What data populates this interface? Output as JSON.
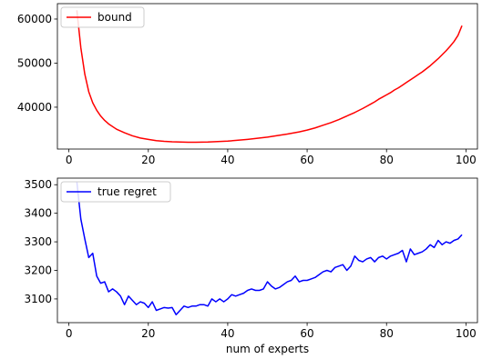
{
  "chart_data": [
    {
      "type": "line",
      "title": "",
      "xlabel": "",
      "ylabel": "",
      "xlim": [
        -2.9,
        102.9
      ],
      "ylim": [
        30500,
        63500
      ],
      "xticks": [
        0,
        20,
        40,
        60,
        80,
        100
      ],
      "yticks": [
        40000,
        50000,
        60000
      ],
      "xtick_labels": [
        "0",
        "20",
        "40",
        "60",
        "80",
        "100"
      ],
      "ytick_labels": [
        "40000",
        "50000",
        "60000"
      ],
      "grid": false,
      "legend_position": "upper left",
      "series": [
        {
          "name": "bound",
          "color": "#ff0000",
          "x": [
            2,
            3,
            4,
            5,
            6,
            7,
            8,
            9,
            10,
            12,
            14,
            16,
            18,
            20,
            22,
            24,
            26,
            28,
            30,
            32,
            35,
            40,
            45,
            50,
            55,
            58,
            60,
            62,
            64,
            66,
            68,
            70,
            72,
            74,
            75,
            76,
            77,
            78,
            79,
            80,
            81,
            82,
            83,
            84,
            85,
            86,
            87,
            88,
            89,
            90,
            91,
            92,
            93,
            94,
            95,
            96,
            97,
            98,
            99
          ],
          "y": [
            62000,
            53500,
            47500,
            43500,
            41000,
            39300,
            38000,
            37000,
            36200,
            35000,
            34200,
            33500,
            33000,
            32700,
            32400,
            32250,
            32150,
            32100,
            32050,
            32050,
            32100,
            32300,
            32700,
            33200,
            33900,
            34400,
            34800,
            35300,
            35900,
            36500,
            37200,
            38000,
            38800,
            39700,
            40200,
            40700,
            41200,
            41800,
            42300,
            42800,
            43300,
            43900,
            44400,
            45000,
            45600,
            46200,
            46800,
            47400,
            48000,
            48700,
            49400,
            50200,
            51000,
            51900,
            52800,
            53800,
            54900,
            56300,
            58500
          ]
        }
      ]
    },
    {
      "type": "line",
      "title": "",
      "xlabel": "num of experts",
      "ylabel": "",
      "xlim": [
        -2.9,
        102.9
      ],
      "ylim": [
        3017,
        3523
      ],
      "xticks": [
        0,
        20,
        40,
        60,
        80,
        100
      ],
      "yticks": [
        3100,
        3200,
        3300,
        3400,
        3500
      ],
      "xtick_labels": [
        "0",
        "20",
        "40",
        "60",
        "80",
        "100"
      ],
      "ytick_labels": [
        "3100",
        "3200",
        "3300",
        "3400",
        "3500"
      ],
      "grid": false,
      "legend_position": "upper left",
      "series": [
        {
          "name": "true regret",
          "color": "#0000ff",
          "x": [
            2,
            3,
            4,
            5,
            6,
            7,
            8,
            9,
            10,
            11,
            12,
            13,
            14,
            15,
            16,
            17,
            18,
            19,
            20,
            21,
            22,
            23,
            24,
            25,
            26,
            27,
            28,
            29,
            30,
            31,
            32,
            33,
            34,
            35,
            36,
            37,
            38,
            39,
            40,
            41,
            42,
            43,
            44,
            45,
            46,
            47,
            48,
            49,
            50,
            51,
            52,
            53,
            54,
            55,
            56,
            57,
            58,
            59,
            60,
            61,
            62,
            63,
            64,
            65,
            66,
            67,
            68,
            69,
            70,
            71,
            72,
            73,
            74,
            75,
            76,
            77,
            78,
            79,
            80,
            81,
            82,
            83,
            84,
            85,
            86,
            87,
            88,
            89,
            90,
            91,
            92,
            93,
            94,
            95,
            96,
            97,
            98,
            99
          ],
          "y": [
            3510,
            3380,
            3310,
            3245,
            3260,
            3180,
            3155,
            3160,
            3125,
            3135,
            3125,
            3110,
            3080,
            3110,
            3095,
            3080,
            3090,
            3085,
            3070,
            3090,
            3060,
            3065,
            3070,
            3068,
            3070,
            3045,
            3060,
            3075,
            3070,
            3075,
            3075,
            3080,
            3080,
            3075,
            3100,
            3090,
            3100,
            3090,
            3100,
            3115,
            3110,
            3115,
            3120,
            3130,
            3135,
            3130,
            3130,
            3135,
            3160,
            3145,
            3135,
            3140,
            3150,
            3160,
            3165,
            3180,
            3160,
            3165,
            3165,
            3170,
            3175,
            3185,
            3195,
            3200,
            3195,
            3210,
            3215,
            3220,
            3200,
            3215,
            3250,
            3235,
            3230,
            3240,
            3245,
            3230,
            3245,
            3250,
            3240,
            3250,
            3255,
            3260,
            3270,
            3230,
            3275,
            3255,
            3260,
            3265,
            3275,
            3290,
            3280,
            3305,
            3290,
            3300,
            3295,
            3305,
            3310,
            3325
          ]
        }
      ]
    }
  ]
}
